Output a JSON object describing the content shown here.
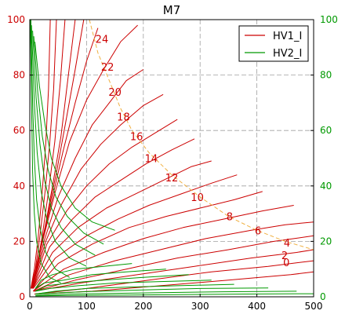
{
  "chart_data": {
    "type": "line",
    "title": "M7",
    "xlabel": "",
    "ylabel": "",
    "xlim": [
      0,
      500
    ],
    "ylim": [
      0,
      100
    ],
    "y2lim": [
      0,
      100
    ],
    "grid": true,
    "legend_position": "top-right",
    "xticks": [
      0,
      100,
      200,
      300,
      400,
      500
    ],
    "yticks": [
      0,
      20,
      40,
      60,
      80,
      100
    ],
    "y2ticks": [
      0,
      20,
      40,
      60,
      80,
      100
    ],
    "colors": {
      "hv1": "#cc0000",
      "hv2": "#009900",
      "guide": "#f0b040",
      "grid": "#a0a0a0",
      "right_axis": "#009900",
      "contour_label": "#cc0000"
    },
    "legend": [
      "HV1_I",
      "HV2_I"
    ],
    "contour_labels": [
      {
        "text": "24",
        "x": 127,
        "y": 93
      },
      {
        "text": "22",
        "x": 137,
        "y": 83
      },
      {
        "text": "20",
        "x": 150,
        "y": 74
      },
      {
        "text": "18",
        "x": 165,
        "y": 65
      },
      {
        "text": "16",
        "x": 188,
        "y": 58
      },
      {
        "text": "14",
        "x": 214,
        "y": 50
      },
      {
        "text": "12",
        "x": 250,
        "y": 43
      },
      {
        "text": "10",
        "x": 295,
        "y": 36
      },
      {
        "text": "8",
        "x": 352,
        "y": 29
      },
      {
        "text": "6",
        "x": 402,
        "y": 24
      },
      {
        "text": "4",
        "x": 453,
        "y": 19.5
      },
      {
        "text": "2",
        "x": 449,
        "y": 15
      },
      {
        "text": "0",
        "x": 452,
        "y": 12.5
      }
    ],
    "guide_line": {
      "name": "guide",
      "points": [
        [
          105,
          100
        ],
        [
          120,
          88
        ],
        [
          140,
          78
        ],
        [
          160,
          68
        ],
        [
          180,
          60
        ],
        [
          210,
          52
        ],
        [
          250,
          44
        ],
        [
          300,
          36
        ],
        [
          350,
          29
        ],
        [
          400,
          24
        ],
        [
          450,
          20
        ],
        [
          500,
          17
        ]
      ]
    },
    "series": [
      {
        "name": "HV1_I",
        "group": "hv1",
        "points": [
          [
            2,
            3
          ],
          [
            8,
            10
          ],
          [
            15,
            22
          ],
          [
            22,
            38
          ],
          [
            28,
            55
          ],
          [
            33,
            75
          ],
          [
            36,
            100
          ]
        ]
      },
      {
        "name": "HV1_I",
        "group": "hv1",
        "points": [
          [
            2,
            3
          ],
          [
            10,
            10
          ],
          [
            18,
            22
          ],
          [
            27,
            38
          ],
          [
            35,
            55
          ],
          [
            42,
            75
          ],
          [
            47,
            100
          ]
        ]
      },
      {
        "name": "HV1_I",
        "group": "hv1",
        "points": [
          [
            2,
            3
          ],
          [
            12,
            10
          ],
          [
            22,
            22
          ],
          [
            33,
            38
          ],
          [
            44,
            56
          ],
          [
            54,
            78
          ],
          [
            62,
            100
          ]
        ]
      },
      {
        "name": "HV1_I",
        "group": "hv1",
        "points": [
          [
            3,
            3
          ],
          [
            14,
            12
          ],
          [
            26,
            24
          ],
          [
            40,
            40
          ],
          [
            55,
            58
          ],
          [
            68,
            80
          ],
          [
            80,
            100
          ]
        ]
      },
      {
        "name": "HV1_I",
        "group": "hv1",
        "points": [
          [
            3,
            3
          ],
          [
            15,
            14
          ],
          [
            30,
            28
          ],
          [
            48,
            46
          ],
          [
            65,
            65
          ],
          [
            80,
            82
          ],
          [
            95,
            100
          ]
        ]
      },
      {
        "name": "HV1_I",
        "group": "hv1",
        "points": [
          [
            3,
            3
          ],
          [
            18,
            17
          ],
          [
            38,
            34
          ],
          [
            58,
            52
          ],
          [
            80,
            70
          ],
          [
            100,
            85
          ],
          [
            120,
            97
          ]
        ]
      },
      {
        "name": "HV1_I",
        "group": "hv1",
        "points": [
          [
            4,
            3
          ],
          [
            20,
            18
          ],
          [
            45,
            38
          ],
          [
            70,
            56
          ],
          [
            100,
            71
          ],
          [
            130,
            82
          ],
          [
            160,
            92
          ],
          [
            190,
            98
          ]
        ]
      },
      {
        "name": "HV1_I",
        "group": "hv1",
        "points": [
          [
            4,
            3
          ],
          [
            25,
            20
          ],
          [
            50,
            36
          ],
          [
            80,
            50
          ],
          [
            110,
            62
          ],
          [
            140,
            70
          ],
          [
            170,
            78
          ],
          [
            200,
            82
          ]
        ]
      },
      {
        "name": "HV1_I",
        "group": "hv1",
        "points": [
          [
            4,
            3
          ],
          [
            28,
            20
          ],
          [
            55,
            33
          ],
          [
            90,
            46
          ],
          [
            125,
            55
          ],
          [
            160,
            62
          ],
          [
            200,
            69
          ],
          [
            235,
            73
          ]
        ]
      },
      {
        "name": "HV1_I",
        "group": "hv1",
        "points": [
          [
            5,
            3
          ],
          [
            30,
            19
          ],
          [
            65,
            31
          ],
          [
            100,
            40
          ],
          [
            140,
            48
          ],
          [
            180,
            54
          ],
          [
            220,
            59
          ],
          [
            260,
            64
          ]
        ]
      },
      {
        "name": "HV1_I",
        "group": "hv1",
        "points": [
          [
            5,
            3
          ],
          [
            35,
            18
          ],
          [
            75,
            28
          ],
          [
            115,
            36
          ],
          [
            160,
            42
          ],
          [
            205,
            48
          ],
          [
            250,
            53
          ],
          [
            290,
            57
          ]
        ]
      },
      {
        "name": "HV1_I",
        "group": "hv1",
        "points": [
          [
            5,
            3
          ],
          [
            40,
            16
          ],
          [
            85,
            25
          ],
          [
            135,
            32
          ],
          [
            185,
            37
          ],
          [
            235,
            42
          ],
          [
            285,
            47
          ],
          [
            320,
            49
          ]
        ]
      },
      {
        "name": "HV1_I",
        "group": "hv1",
        "points": [
          [
            6,
            3
          ],
          [
            45,
            14
          ],
          [
            100,
            22
          ],
          [
            155,
            28
          ],
          [
            210,
            33
          ],
          [
            265,
            37
          ],
          [
            320,
            41
          ],
          [
            365,
            44
          ]
        ]
      },
      {
        "name": "HV1_I",
        "group": "hv1",
        "points": [
          [
            6,
            2
          ],
          [
            50,
            12
          ],
          [
            110,
            19
          ],
          [
            175,
            25
          ],
          [
            240,
            29
          ],
          [
            300,
            32
          ],
          [
            360,
            35
          ],
          [
            410,
            38
          ]
        ]
      },
      {
        "name": "HV1_I",
        "group": "hv1",
        "points": [
          [
            6,
            2
          ],
          [
            60,
            10
          ],
          [
            130,
            16
          ],
          [
            200,
            21
          ],
          [
            270,
            25
          ],
          [
            340,
            28
          ],
          [
            410,
            31
          ],
          [
            465,
            33
          ]
        ]
      },
      {
        "name": "HV1_I",
        "group": "hv1",
        "points": [
          [
            7,
            2
          ],
          [
            70,
            8
          ],
          [
            150,
            13
          ],
          [
            230,
            17
          ],
          [
            310,
            21
          ],
          [
            390,
            24
          ],
          [
            450,
            26
          ],
          [
            500,
            27
          ]
        ]
      },
      {
        "name": "HV1_I",
        "group": "hv1",
        "points": [
          [
            7,
            2
          ],
          [
            80,
            6
          ],
          [
            170,
            10
          ],
          [
            260,
            14
          ],
          [
            350,
            17
          ],
          [
            430,
            20
          ],
          [
            500,
            22
          ]
        ]
      },
      {
        "name": "HV1_I",
        "group": "hv1",
        "points": [
          [
            8,
            2
          ],
          [
            90,
            5
          ],
          [
            190,
            8
          ],
          [
            290,
            11
          ],
          [
            390,
            14
          ],
          [
            470,
            16
          ],
          [
            500,
            17
          ]
        ]
      },
      {
        "name": "HV1_I",
        "group": "hv1",
        "points": [
          [
            8,
            1
          ],
          [
            100,
            3
          ],
          [
            210,
            6
          ],
          [
            320,
            9
          ],
          [
            420,
            11
          ],
          [
            500,
            13
          ]
        ]
      },
      {
        "name": "HV1_I",
        "group": "hv1",
        "points": [
          [
            9,
            1
          ],
          [
            110,
            2
          ],
          [
            230,
            4
          ],
          [
            350,
            6
          ],
          [
            460,
            8
          ],
          [
            500,
            9
          ]
        ]
      },
      {
        "name": "HV2_I",
        "group": "hv2",
        "points": [
          [
            1,
            100
          ],
          [
            3,
            70
          ],
          [
            5,
            45
          ],
          [
            8,
            30
          ],
          [
            12,
            20
          ],
          [
            20,
            12
          ],
          [
            35,
            7
          ],
          [
            55,
            5
          ]
        ]
      },
      {
        "name": "HV2_I",
        "group": "hv2",
        "points": [
          [
            2,
            100
          ],
          [
            5,
            70
          ],
          [
            8,
            50
          ],
          [
            12,
            35
          ],
          [
            18,
            25
          ],
          [
            28,
            16
          ],
          [
            45,
            10
          ],
          [
            70,
            7
          ]
        ]
      },
      {
        "name": "HV2_I",
        "group": "hv2",
        "points": [
          [
            3,
            98
          ],
          [
            8,
            70
          ],
          [
            13,
            52
          ],
          [
            20,
            38
          ],
          [
            30,
            28
          ],
          [
            45,
            20
          ],
          [
            70,
            14
          ],
          [
            100,
            11
          ]
        ]
      },
      {
        "name": "HV2_I",
        "group": "hv2",
        "points": [
          [
            5,
            96
          ],
          [
            11,
            72
          ],
          [
            18,
            55
          ],
          [
            26,
            42
          ],
          [
            38,
            32
          ],
          [
            55,
            25
          ],
          [
            80,
            19
          ],
          [
            115,
            15
          ]
        ]
      },
      {
        "name": "HV2_I",
        "group": "hv2",
        "points": [
          [
            7,
            94
          ],
          [
            14,
            74
          ],
          [
            22,
            58
          ],
          [
            32,
            46
          ],
          [
            46,
            36
          ],
          [
            66,
            29
          ],
          [
            95,
            23
          ],
          [
            130,
            19
          ]
        ]
      },
      {
        "name": "HV2_I",
        "group": "hv2",
        "points": [
          [
            9,
            92
          ],
          [
            17,
            76
          ],
          [
            27,
            62
          ],
          [
            38,
            50
          ],
          [
            55,
            40
          ],
          [
            80,
            32
          ],
          [
            110,
            27
          ],
          [
            150,
            24
          ]
        ]
      },
      {
        "name": "HV2_I",
        "group": "hv2",
        "points": [
          [
            10,
            3
          ],
          [
            20,
            6
          ],
          [
            40,
            8
          ],
          [
            80,
            10
          ],
          [
            130,
            11
          ],
          [
            180,
            12
          ]
        ]
      },
      {
        "name": "HV2_I",
        "group": "hv2",
        "points": [
          [
            10,
            3
          ],
          [
            25,
            5
          ],
          [
            60,
            6
          ],
          [
            110,
            8
          ],
          [
            170,
            9
          ],
          [
            240,
            10
          ]
        ]
      },
      {
        "name": "HV2_I",
        "group": "hv2",
        "points": [
          [
            10,
            2
          ],
          [
            30,
            4
          ],
          [
            70,
            5
          ],
          [
            130,
            6
          ],
          [
            200,
            7
          ],
          [
            280,
            8
          ]
        ]
      },
      {
        "name": "HV2_I",
        "group": "hv2",
        "points": [
          [
            10,
            2
          ],
          [
            35,
            3
          ],
          [
            85,
            4
          ],
          [
            150,
            5
          ],
          [
            230,
            5.5
          ],
          [
            320,
            6
          ]
        ]
      },
      {
        "name": "HV2_I",
        "group": "hv2",
        "points": [
          [
            10,
            1
          ],
          [
            45,
            2
          ],
          [
            100,
            3
          ],
          [
            175,
            3.5
          ],
          [
            260,
            4
          ],
          [
            360,
            4.5
          ]
        ]
      },
      {
        "name": "HV2_I",
        "group": "hv2",
        "points": [
          [
            10,
            1
          ],
          [
            55,
            1.5
          ],
          [
            120,
            2
          ],
          [
            200,
            2.5
          ],
          [
            300,
            3
          ],
          [
            420,
            3.2
          ]
        ]
      },
      {
        "name": "HV2_I",
        "group": "hv2",
        "points": [
          [
            10,
            0.5
          ],
          [
            65,
            1
          ],
          [
            140,
            1.2
          ],
          [
            230,
            1.5
          ],
          [
            340,
            1.8
          ],
          [
            470,
            2
          ]
        ]
      },
      {
        "name": "HV2_I",
        "group": "hv2",
        "points": [
          [
            10,
            0.3
          ],
          [
            80,
            0.5
          ],
          [
            160,
            0.6
          ],
          [
            260,
            0.8
          ],
          [
            380,
            1
          ],
          [
            500,
            1.1
          ]
        ]
      }
    ]
  }
}
